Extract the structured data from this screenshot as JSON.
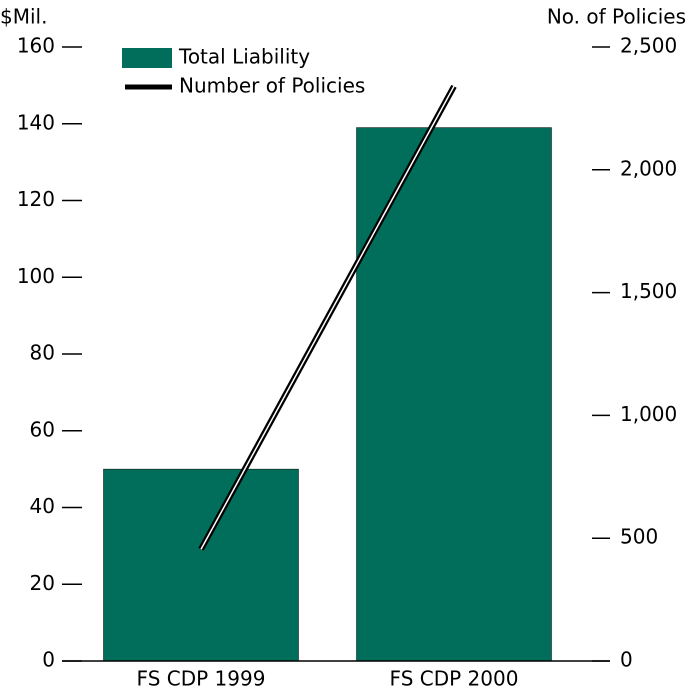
{
  "chart_data": {
    "type": "bar",
    "y_label": "$Mil.",
    "y2_label": "No. of Policies",
    "categories": [
      "FS CDP 1999",
      "FS CDP 2000"
    ],
    "series": [
      {
        "name": "Total Liability",
        "color": "#006e5a",
        "values": [
          50,
          139
        ]
      },
      {
        "name": "Number of Policies",
        "color": "#000000",
        "values": [
          455,
          2340
        ],
        "axis": "y2"
      }
    ],
    "ylim": [
      0,
      160
    ],
    "yticks": [
      0,
      20,
      40,
      60,
      80,
      100,
      120,
      140,
      160
    ],
    "y2lim": [
      0,
      2500
    ],
    "y2ticks": [
      0,
      500,
      {
        "value": 1000,
        "label": "1,000"
      },
      {
        "value": 1500,
        "label": "1,500"
      },
      {
        "value": 2000,
        "label": "2,000"
      },
      {
        "value": 2500,
        "label": "2,500"
      }
    ],
    "legend": "upper left"
  }
}
